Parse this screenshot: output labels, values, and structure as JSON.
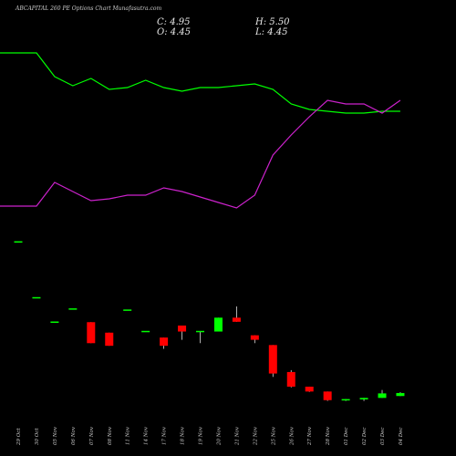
{
  "chart_data": {
    "type": "candlestick",
    "title": "ABCAPITAL 260 PE Options Chart Munafasutra.com",
    "ohlc": {
      "close_label": "C:",
      "close": "4.95",
      "high_label": "H:",
      "high": "5.50",
      "open_label": "O:",
      "open": "4.45",
      "low_label": "L:",
      "low": "4.45"
    },
    "categories": [
      "29 Oct",
      "30 Oct",
      "05 Nov",
      "06 Nov",
      "07 Nov",
      "08 Nov",
      "11 Nov",
      "14 Nov",
      "17 Nov",
      "18 Nov",
      "19 Nov",
      "20 Nov",
      "21 Nov",
      "22 Nov",
      "25 Nov",
      "26 Nov",
      "27 Nov",
      "28 Nov",
      "01 Dec",
      "02 Dec",
      "03 Dec",
      "04 Dec"
    ],
    "candles": [
      {
        "open": 42.5,
        "high": 42.5,
        "low": 42.5,
        "close": 42.5,
        "color": "#00ff00"
      },
      {
        "open": 27.6,
        "high": 27.6,
        "low": 27.6,
        "close": 27.6,
        "color": "#00ff00"
      },
      {
        "open": 21.1,
        "high": 21.1,
        "low": 21.1,
        "close": 21.1,
        "color": "#00ff00"
      },
      {
        "open": 24.6,
        "high": 24.6,
        "low": 24.6,
        "close": 24.6,
        "color": "#00ff00"
      },
      {
        "open": 21.1,
        "high": 21.1,
        "low": 15.5,
        "close": 15.5,
        "color": "#ff0000"
      },
      {
        "open": 18.3,
        "high": 18.3,
        "low": 14.8,
        "close": 14.8,
        "color": "#ff0000"
      },
      {
        "open": 24.3,
        "high": 24.3,
        "low": 24.3,
        "close": 24.3,
        "color": "#00ff00"
      },
      {
        "open": 18.6,
        "high": 18.6,
        "low": 18.6,
        "close": 18.6,
        "color": "#00ff00"
      },
      {
        "open": 17.0,
        "high": 17.0,
        "low": 14.0,
        "close": 14.8,
        "color": "#ff0000"
      },
      {
        "open": 20.2,
        "high": 20.2,
        "low": 16.4,
        "close": 18.6,
        "color": "#ff0000"
      },
      {
        "open": 18.6,
        "high": 18.6,
        "low": 15.5,
        "close": 18.6,
        "color": "#00ff00"
      },
      {
        "open": 18.6,
        "high": 22.3,
        "low": 18.6,
        "close": 22.3,
        "color": "#00ff00"
      },
      {
        "open": 22.3,
        "high": 25.3,
        "low": 21.2,
        "close": 21.2,
        "color": "#ff0000"
      },
      {
        "open": 17.6,
        "high": 17.6,
        "low": 15.5,
        "close": 16.4,
        "color": "#ff0000"
      },
      {
        "open": 15.0,
        "high": 15.0,
        "low": 6.5,
        "close": 7.4,
        "color": "#ff0000"
      },
      {
        "open": 7.8,
        "high": 8.3,
        "low": 3.7,
        "close": 3.9,
        "color": "#ff0000"
      },
      {
        "open": 3.9,
        "high": 3.9,
        "low": 2.5,
        "close": 2.6,
        "color": "#ff0000"
      },
      {
        "open": 2.6,
        "high": 2.6,
        "low": 0.1,
        "close": 0.3,
        "color": "#ff0000"
      },
      {
        "open": 0.4,
        "high": 0.6,
        "low": 0.1,
        "close": 0.4,
        "color": "#00ff00"
      },
      {
        "open": 0.5,
        "high": 0.9,
        "low": 0.1,
        "close": 0.9,
        "color": "#00ff00"
      },
      {
        "open": 0.9,
        "high": 3.0,
        "low": 0.9,
        "close": 2.1,
        "color": "#00ff00"
      },
      {
        "open": 1.4,
        "high": 2.4,
        "low": 1.4,
        "close": 2.2,
        "color": "#00ff00"
      }
    ],
    "price_range": [
      0,
      45
    ],
    "overlay_lines": [
      {
        "color": "#00ff00",
        "values": [
          9.6,
          9.6,
          8.3,
          7.8,
          8.2,
          7.6,
          7.7,
          8.1,
          7.7,
          7.5,
          7.7,
          7.7,
          7.8,
          7.9,
          7.6,
          6.8,
          6.5,
          6.4,
          6.3,
          6.3,
          6.4,
          6.4
        ]
      },
      {
        "color": "#cc22cc",
        "values": [
          1.2,
          1.2,
          2.5,
          2.0,
          1.5,
          1.6,
          1.8,
          1.8,
          2.2,
          2.0,
          1.7,
          1.4,
          1.1,
          1.8,
          4.0,
          5.1,
          6.1,
          7.0,
          6.8,
          6.8,
          6.3,
          7.0
        ]
      }
    ],
    "overlay_range": [
      0,
      10.5
    ],
    "grid": false,
    "legend": "none"
  }
}
